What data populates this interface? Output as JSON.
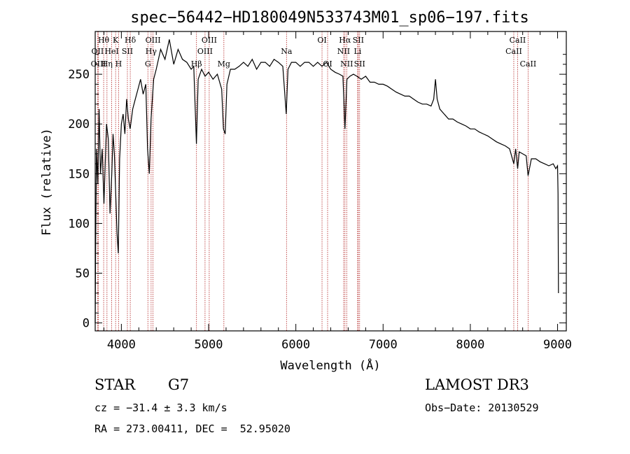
{
  "chart_data": {
    "type": "line",
    "title": "spec−56442−HD180049N533743M01_sp06−197.fits",
    "xlabel": "Wavelength (Å)",
    "ylabel": "Flux (relative)",
    "xlim": [
      3700,
      9100
    ],
    "ylim": [
      -8,
      293
    ],
    "x_ticks": [
      4000,
      5000,
      6000,
      7000,
      8000,
      9000
    ],
    "y_ticks": [
      0,
      50,
      100,
      150,
      200,
      250
    ],
    "grid": false,
    "series": [
      {
        "name": "flux",
        "points": [
          [
            3700,
            0
          ],
          [
            3705,
            75
          ],
          [
            3715,
            175
          ],
          [
            3730,
            140
          ],
          [
            3745,
            215
          ],
          [
            3760,
            150
          ],
          [
            3780,
            175
          ],
          [
            3800,
            120
          ],
          [
            3815,
            160
          ],
          [
            3830,
            200
          ],
          [
            3850,
            185
          ],
          [
            3870,
            110
          ],
          [
            3890,
            150
          ],
          [
            3905,
            190
          ],
          [
            3920,
            170
          ],
          [
            3935,
            130
          ],
          [
            3950,
            90
          ],
          [
            3965,
            70
          ],
          [
            3980,
            165
          ],
          [
            4000,
            200
          ],
          [
            4020,
            210
          ],
          [
            4040,
            190
          ],
          [
            4060,
            225
          ],
          [
            4080,
            205
          ],
          [
            4100,
            195
          ],
          [
            4130,
            215
          ],
          [
            4160,
            225
          ],
          [
            4190,
            235
          ],
          [
            4220,
            245
          ],
          [
            4250,
            230
          ],
          [
            4280,
            240
          ],
          [
            4300,
            175
          ],
          [
            4320,
            150
          ],
          [
            4340,
            205
          ],
          [
            4370,
            245
          ],
          [
            4400,
            255
          ],
          [
            4450,
            275
          ],
          [
            4500,
            265
          ],
          [
            4550,
            285
          ],
          [
            4600,
            260
          ],
          [
            4650,
            275
          ],
          [
            4700,
            265
          ],
          [
            4750,
            262
          ],
          [
            4800,
            255
          ],
          [
            4830,
            258
          ],
          [
            4860,
            180
          ],
          [
            4880,
            245
          ],
          [
            4920,
            255
          ],
          [
            4960,
            248
          ],
          [
            5000,
            252
          ],
          [
            5050,
            245
          ],
          [
            5100,
            250
          ],
          [
            5150,
            235
          ],
          [
            5170,
            195
          ],
          [
            5190,
            190
          ],
          [
            5210,
            240
          ],
          [
            5250,
            255
          ],
          [
            5300,
            255
          ],
          [
            5350,
            258
          ],
          [
            5400,
            262
          ],
          [
            5450,
            258
          ],
          [
            5500,
            265
          ],
          [
            5550,
            255
          ],
          [
            5600,
            262
          ],
          [
            5650,
            262
          ],
          [
            5700,
            258
          ],
          [
            5750,
            265
          ],
          [
            5800,
            262
          ],
          [
            5850,
            258
          ],
          [
            5890,
            210
          ],
          [
            5910,
            255
          ],
          [
            5950,
            262
          ],
          [
            6000,
            262
          ],
          [
            6050,
            258
          ],
          [
            6100,
            262
          ],
          [
            6150,
            262
          ],
          [
            6200,
            258
          ],
          [
            6250,
            262
          ],
          [
            6300,
            258
          ],
          [
            6350,
            262
          ],
          [
            6400,
            255
          ],
          [
            6450,
            252
          ],
          [
            6500,
            250
          ],
          [
            6540,
            248
          ],
          [
            6563,
            195
          ],
          [
            6585,
            245
          ],
          [
            6620,
            248
          ],
          [
            6660,
            250
          ],
          [
            6700,
            248
          ],
          [
            6750,
            245
          ],
          [
            6800,
            248
          ],
          [
            6850,
            242
          ],
          [
            6900,
            242
          ],
          [
            6950,
            240
          ],
          [
            7000,
            240
          ],
          [
            7050,
            238
          ],
          [
            7100,
            235
          ],
          [
            7150,
            232
          ],
          [
            7200,
            230
          ],
          [
            7250,
            228
          ],
          [
            7300,
            228
          ],
          [
            7350,
            225
          ],
          [
            7400,
            222
          ],
          [
            7450,
            220
          ],
          [
            7500,
            220
          ],
          [
            7550,
            218
          ],
          [
            7580,
            225
          ],
          [
            7600,
            245
          ],
          [
            7620,
            225
          ],
          [
            7650,
            215
          ],
          [
            7700,
            210
          ],
          [
            7750,
            205
          ],
          [
            7800,
            205
          ],
          [
            7850,
            202
          ],
          [
            7900,
            200
          ],
          [
            7950,
            198
          ],
          [
            8000,
            195
          ],
          [
            8050,
            195
          ],
          [
            8100,
            192
          ],
          [
            8150,
            190
          ],
          [
            8200,
            188
          ],
          [
            8250,
            185
          ],
          [
            8300,
            182
          ],
          [
            8350,
            180
          ],
          [
            8400,
            178
          ],
          [
            8450,
            175
          ],
          [
            8498,
            160
          ],
          [
            8520,
            175
          ],
          [
            8542,
            155
          ],
          [
            8560,
            172
          ],
          [
            8600,
            170
          ],
          [
            8640,
            168
          ],
          [
            8662,
            148
          ],
          [
            8700,
            165
          ],
          [
            8750,
            165
          ],
          [
            8800,
            162
          ],
          [
            8850,
            160
          ],
          [
            8900,
            158
          ],
          [
            8950,
            160
          ],
          [
            8980,
            155
          ],
          [
            9000,
            158
          ],
          [
            9005,
            130
          ],
          [
            9010,
            30
          ]
        ]
      }
    ],
    "line_markers": [
      {
        "label": "Hθ",
        "wl": 3797,
        "row": 1
      },
      {
        "label": "OII",
        "wl": 3727,
        "row": 2
      },
      {
        "label": "OIII",
        "wl": 3737,
        "row": 3
      },
      {
        "label": "K",
        "wl": 3934,
        "row": 1
      },
      {
        "label": "HeI",
        "wl": 3889,
        "row": 2
      },
      {
        "label": "Hη",
        "wl": 3835,
        "row": 3
      },
      {
        "label": "Hδ",
        "wl": 4102,
        "row": 1
      },
      {
        "label": "SII",
        "wl": 4069,
        "row": 2
      },
      {
        "label": "H",
        "wl": 3968,
        "row": 3
      },
      {
        "label": "OIII",
        "wl": 4363,
        "row": 1
      },
      {
        "label": "Hγ",
        "wl": 4341,
        "row": 2
      },
      {
        "label": "G",
        "wl": 4304,
        "row": 3
      },
      {
        "label": "OIII",
        "wl": 5007,
        "row": 1
      },
      {
        "label": "OIII",
        "wl": 4959,
        "row": 2
      },
      {
        "label": "Hβ",
        "wl": 4861,
        "row": 3
      },
      {
        "label": "Mg",
        "wl": 5175,
        "row": 3
      },
      {
        "label": "Na",
        "wl": 5893,
        "row": 2
      },
      {
        "label": "OI",
        "wl": 6300,
        "row": 1
      },
      {
        "label": "OI",
        "wl": 6364,
        "row": 3
      },
      {
        "label": "Hα",
        "wl": 6563,
        "row": 1
      },
      {
        "label": "SII",
        "wl": 6716,
        "row": 1
      },
      {
        "label": "NII",
        "wl": 6548,
        "row": 2
      },
      {
        "label": "Li",
        "wl": 6708,
        "row": 2
      },
      {
        "label": "NII",
        "wl": 6583,
        "row": 3
      },
      {
        "label": "SII",
        "wl": 6731,
        "row": 3
      },
      {
        "label": "CaII",
        "wl": 8542,
        "row": 1
      },
      {
        "label": "CaII",
        "wl": 8498,
        "row": 2
      },
      {
        "label": "CaII",
        "wl": 8662,
        "row": 3
      }
    ]
  },
  "info": {
    "class_label": "STAR",
    "subclass": "G7",
    "survey": "LAMOST DR3",
    "cz": "cz = −31.4 ± 3.3 km/s",
    "obs_date": "Obs−Date: 20130529",
    "coords": "RA = 273.00411, DEC =  52.95020"
  },
  "colors": {
    "marker_line": "#b22222",
    "spectrum": "#000000"
  }
}
